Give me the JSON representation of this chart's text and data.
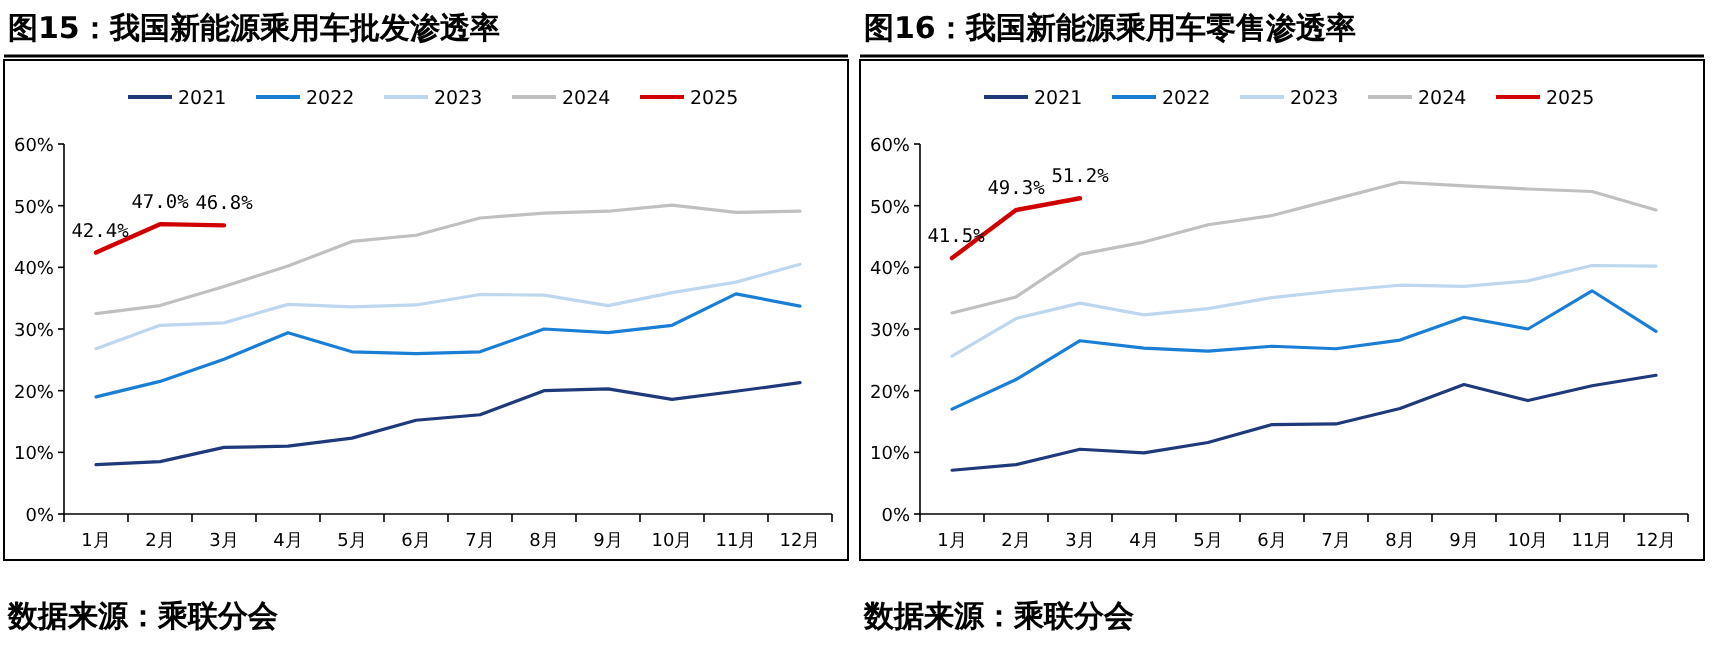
{
  "chart_data": [
    {
      "type": "line",
      "title": "图15：我国新能源乘用车批发渗透率",
      "categories": [
        "1月",
        "2月",
        "3月",
        "4月",
        "5月",
        "6月",
        "7月",
        "8月",
        "9月",
        "10月",
        "11月",
        "12月"
      ],
      "ylim": [
        0,
        60
      ],
      "yticks": [
        {
          "value": 0,
          "label": "0%"
        },
        {
          "value": 10,
          "label": "10%"
        },
        {
          "value": 20,
          "label": "20%"
        },
        {
          "value": 30,
          "label": "30%"
        },
        {
          "value": 40,
          "label": "40%"
        },
        {
          "value": 50,
          "label": "50%"
        },
        {
          "value": 60,
          "label": "60%"
        }
      ],
      "legend": "top",
      "grid": false,
      "marker": "none",
      "line_style": "solid",
      "series": [
        {
          "name": "2021",
          "color": "#1f3a7a",
          "values": [
            8.0,
            8.5,
            10.8,
            11.0,
            12.3,
            15.2,
            16.1,
            20.0,
            20.3,
            18.6,
            19.9,
            21.3
          ]
        },
        {
          "name": "2022",
          "color": "#1a7fd4",
          "values": [
            19.0,
            21.5,
            25.1,
            29.4,
            26.3,
            26.0,
            26.3,
            30.0,
            29.4,
            30.6,
            35.7,
            33.7
          ]
        },
        {
          "name": "2023",
          "color": "#bdd7ee",
          "values": [
            26.8,
            30.6,
            31.0,
            34.0,
            33.6,
            33.9,
            35.6,
            35.5,
            33.8,
            35.9,
            37.6,
            40.5
          ]
        },
        {
          "name": "2024",
          "color": "#c0c0c0",
          "values": [
            32.5,
            33.8,
            36.9,
            40.2,
            44.2,
            45.2,
            48.0,
            48.8,
            49.1,
            50.1,
            48.9,
            49.1
          ]
        },
        {
          "name": "2025",
          "color": "#d00000",
          "values": [
            42.4,
            47.0,
            46.8,
            null,
            null,
            null,
            null,
            null,
            null,
            null,
            null,
            null
          ],
          "value_labels": [
            "42.4%",
            "47.0%",
            "46.8%",
            null,
            null,
            null,
            null,
            null,
            null,
            null,
            null,
            null
          ]
        }
      ],
      "annotations": [
        "数据来源：乘联分会"
      ]
    },
    {
      "type": "line",
      "title": "图16：我国新能源乘用车零售渗透率",
      "categories": [
        "1月",
        "2月",
        "3月",
        "4月",
        "5月",
        "6月",
        "7月",
        "8月",
        "9月",
        "10月",
        "11月",
        "12月"
      ],
      "ylim": [
        0,
        60
      ],
      "yticks": [
        {
          "value": 0,
          "label": "0%"
        },
        {
          "value": 10,
          "label": "10%"
        },
        {
          "value": 20,
          "label": "20%"
        },
        {
          "value": 30,
          "label": "30%"
        },
        {
          "value": 40,
          "label": "40%"
        },
        {
          "value": 50,
          "label": "50%"
        },
        {
          "value": 60,
          "label": "60%"
        }
      ],
      "legend": "top",
      "grid": false,
      "marker": "none",
      "line_style": "solid",
      "series": [
        {
          "name": "2021",
          "color": "#1f3a7a",
          "values": [
            7.1,
            8.0,
            10.5,
            9.9,
            11.6,
            14.5,
            14.6,
            17.1,
            21.0,
            18.4,
            20.8,
            22.5
          ]
        },
        {
          "name": "2022",
          "color": "#1a7fd4",
          "values": [
            17.0,
            21.8,
            28.1,
            26.9,
            26.4,
            27.2,
            26.8,
            28.2,
            31.9,
            30.0,
            36.2,
            29.6
          ]
        },
        {
          "name": "2023",
          "color": "#bdd7ee",
          "values": [
            25.6,
            31.7,
            34.2,
            32.3,
            33.3,
            35.1,
            36.2,
            37.1,
            36.9,
            37.8,
            40.3,
            40.2
          ]
        },
        {
          "name": "2024",
          "color": "#c0c0c0",
          "values": [
            32.6,
            35.2,
            42.1,
            44.1,
            46.9,
            48.4,
            51.1,
            53.8,
            53.2,
            52.7,
            52.3,
            49.3
          ]
        },
        {
          "name": "2025",
          "color": "#d00000",
          "values": [
            41.5,
            49.3,
            51.2,
            null,
            null,
            null,
            null,
            null,
            null,
            null,
            null,
            null
          ],
          "value_labels": [
            "41.5%",
            "49.3%",
            "51.2%",
            null,
            null,
            null,
            null,
            null,
            null,
            null,
            null,
            null
          ]
        }
      ],
      "annotations": [
        "数据来源：乘联分会"
      ]
    }
  ]
}
